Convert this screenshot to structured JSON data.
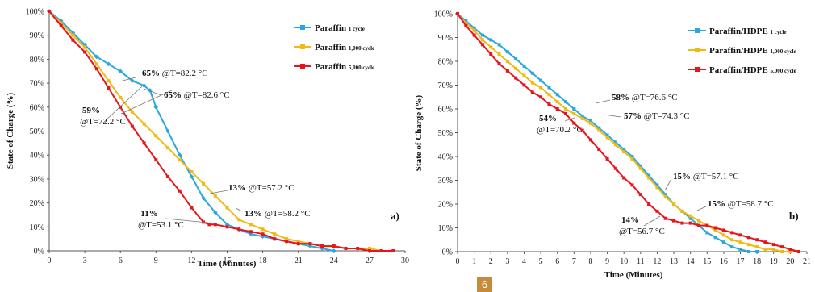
{
  "chart_data": [
    {
      "type": "line",
      "panel_label": "a)",
      "xlabel": "Time (Minutes)",
      "ylabel": "State of Charge (%)",
      "xlim": [
        0,
        30
      ],
      "ylim": [
        0,
        100
      ],
      "xticks": [
        "0",
        "3",
        "6",
        "9",
        "12",
        "15",
        "18",
        "21",
        "24",
        "27",
        "30"
      ],
      "yticks": [
        "0%",
        "10%",
        "20%",
        "30%",
        "40%",
        "50%",
        "60%",
        "70%",
        "80%",
        "90%",
        "100%"
      ],
      "legend_position": "top-right",
      "series": [
        {
          "name": "Paraffin",
          "name_sub": "1 cycle",
          "color": "#29a8e0",
          "x": [
            0,
            1,
            2,
            3,
            4,
            5,
            6,
            7,
            8,
            8.5,
            9,
            10,
            11,
            12,
            13,
            14,
            15,
            16,
            17,
            18,
            19,
            20,
            21,
            22,
            23,
            24
          ],
          "y": [
            100,
            96,
            91,
            86,
            81,
            78,
            75,
            71,
            69,
            67,
            60,
            50,
            40,
            31,
            22,
            16,
            11,
            9,
            7,
            6,
            5,
            4,
            3,
            2,
            1,
            0
          ]
        },
        {
          "name": "Paraffin",
          "name_sub": "1,000 cycle",
          "color": "#f2b90f",
          "x": [
            0,
            1,
            2,
            3,
            4,
            5,
            6,
            7,
            8,
            9,
            10,
            11,
            12,
            13,
            14,
            15,
            16,
            17,
            18,
            19,
            20,
            21,
            22,
            23,
            24,
            25,
            26,
            27,
            28,
            29
          ],
          "y": [
            100,
            95,
            90,
            85,
            78,
            71,
            64,
            58,
            53,
            48,
            43,
            38,
            33,
            28,
            23,
            18,
            13,
            11,
            9,
            7,
            5,
            4,
            3,
            2,
            2,
            1,
            1,
            1,
            0,
            0
          ]
        },
        {
          "name": "Paraffin",
          "name_sub": "5,000 cycle",
          "color": "#e8141a",
          "x": [
            0,
            1,
            2,
            3,
            4,
            5,
            6,
            7,
            8,
            9,
            10,
            11,
            12,
            13,
            13.5,
            14,
            15,
            16,
            17,
            18,
            19,
            20,
            21,
            22,
            23,
            24,
            25,
            26,
            27,
            28,
            29
          ],
          "y": [
            100,
            94,
            88,
            83,
            76,
            68,
            60,
            52,
            45,
            38,
            31,
            25,
            18,
            12,
            11,
            11,
            10,
            9,
            8,
            7,
            5,
            4,
            3,
            3,
            2,
            2,
            1,
            1,
            0,
            0,
            0
          ]
        }
      ],
      "annotations": [
        {
          "pct": "65%",
          "text": "@T=82.2 °C",
          "multiline": false
        },
        {
          "pct": "65%",
          "text": "@T=82.6 °C",
          "multiline": false
        },
        {
          "pct": "59%",
          "text": "@T=72.2 °C",
          "multiline": true
        },
        {
          "pct": "13%",
          "text": "@T=57.2 °C",
          "multiline": false
        },
        {
          "pct": "13%",
          "text": "@T=58.2 °C",
          "multiline": false
        },
        {
          "pct": "11%",
          "text": "@T=53.1 °C",
          "multiline": true
        }
      ]
    },
    {
      "type": "line",
      "panel_label": "b)",
      "xlabel": "Time (Minutes)",
      "ylabel": "State of Charge (%)",
      "xlim": [
        0,
        21
      ],
      "ylim": [
        0,
        100
      ],
      "xticks": [
        "0",
        "1",
        "2",
        "3",
        "4",
        "5",
        "6",
        "7",
        "8",
        "9",
        "10",
        "11",
        "12",
        "13",
        "14",
        "15",
        "16",
        "17",
        "18",
        "19",
        "20",
        "21"
      ],
      "yticks": [
        "0%",
        "10%",
        "20%",
        "30%",
        "40%",
        "50%",
        "60%",
        "70%",
        "80%",
        "90%",
        "100%"
      ],
      "legend_position": "top-right",
      "series": [
        {
          "name": "Paraffin/HDPE",
          "name_sub": "1 cycle",
          "color": "#29a8e0",
          "x": [
            0,
            0.5,
            1,
            1.5,
            2,
            2.5,
            3,
            3.5,
            4,
            4.5,
            5,
            5.5,
            6,
            6.5,
            7,
            7.5,
            8,
            8.5,
            9,
            9.5,
            10,
            10.5,
            11,
            11.5,
            12,
            12.5,
            13,
            13.5,
            14,
            14.5,
            15,
            15.5,
            16,
            16.5,
            17,
            17.5,
            18
          ],
          "y": [
            100,
            97,
            94,
            91,
            89,
            87,
            84,
            81,
            78,
            75,
            72,
            69,
            66,
            63,
            60,
            57,
            55,
            52,
            49,
            46,
            43,
            40,
            36,
            32,
            28,
            24,
            20,
            17,
            14,
            11,
            8,
            6,
            4,
            2,
            1,
            0,
            0
          ]
        },
        {
          "name": "Paraffin/HDPE",
          "name_sub": "1,000 cycle",
          "color": "#f2b90f",
          "x": [
            0,
            0.5,
            1,
            1.5,
            2,
            2.5,
            3,
            3.5,
            4,
            4.5,
            5,
            5.5,
            6,
            6.5,
            7,
            7.5,
            8,
            8.5,
            9,
            9.5,
            10,
            10.5,
            11,
            11.5,
            12,
            12.5,
            13,
            13.5,
            14,
            14.5,
            15,
            15.5,
            16,
            16.5,
            17,
            17.5,
            18,
            18.5,
            19,
            19.5,
            20
          ],
          "y": [
            100,
            96,
            93,
            89,
            86,
            83,
            80,
            77,
            74,
            71,
            69,
            66,
            63,
            60,
            58,
            56,
            54,
            51,
            48,
            45,
            42,
            39,
            35,
            31,
            27,
            23,
            20,
            17,
            15,
            13,
            11,
            9,
            7,
            5,
            4,
            3,
            2,
            1,
            1,
            0,
            0
          ]
        },
        {
          "name": "Paraffin/HDPE",
          "name_sub": "5,000 cycle",
          "color": "#e8141a",
          "x": [
            0,
            0.5,
            1,
            1.5,
            2,
            2.5,
            3,
            3.5,
            4,
            4.5,
            5,
            5.5,
            6,
            6.5,
            7,
            7.5,
            8,
            8.5,
            9,
            9.5,
            10,
            10.5,
            11,
            11.5,
            12,
            12.5,
            13,
            13.5,
            14,
            14.5,
            15,
            15.5,
            16,
            16.5,
            17,
            17.5,
            18,
            18.5,
            19,
            19.5,
            20,
            20.5
          ],
          "y": [
            100,
            95,
            91,
            87,
            83,
            79,
            76,
            73,
            70,
            67,
            65,
            62,
            60,
            58,
            54,
            51,
            47,
            43,
            39,
            35,
            31,
            28,
            24,
            20,
            17,
            14,
            13,
            12,
            12,
            11,
            11,
            10,
            9,
            8,
            7,
            6,
            5,
            4,
            3,
            2,
            1,
            0
          ]
        }
      ],
      "annotations": [
        {
          "pct": "58%",
          "text": "@T=76.6 °C",
          "multiline": false
        },
        {
          "pct": "57%",
          "text": "@T=74.3 °C",
          "multiline": false
        },
        {
          "pct": "54%",
          "text": "@T=70.2 °C",
          "multiline": true
        },
        {
          "pct": "15%",
          "text": "@T=57.1 °C",
          "multiline": false
        },
        {
          "pct": "15%",
          "text": "@T=58.7 °C",
          "multiline": false
        },
        {
          "pct": "14%",
          "text": "@T=56.7 °C",
          "multiline": true
        }
      ]
    }
  ],
  "page_badge": "6"
}
